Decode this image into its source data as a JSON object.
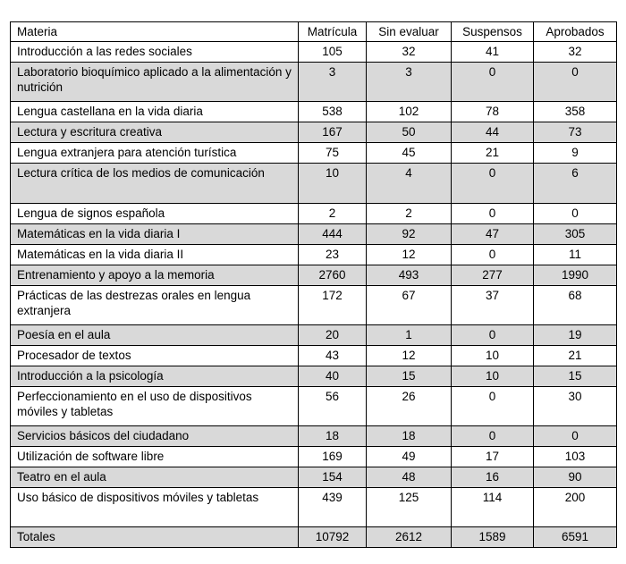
{
  "table": {
    "headers": [
      "Materia",
      "Matrícula",
      "Sin evaluar",
      "Suspensos",
      "Aprobados"
    ],
    "rows": [
      [
        "Introducción a las redes sociales",
        "105",
        "32",
        "41",
        "32"
      ],
      [
        "Laboratorio bioquímico aplicado a la alimentación y nutrición",
        "3",
        "3",
        "0",
        "0"
      ],
      [
        "Lengua castellana en la vida diaria",
        "538",
        "102",
        "78",
        "358"
      ],
      [
        "Lectura y escritura creativa",
        "167",
        "50",
        "44",
        "73"
      ],
      [
        "Lengua extranjera para atención turística",
        "75",
        "45",
        "21",
        "9"
      ],
      [
        "Lectura crítica de los medios de comunicación",
        "10",
        "4",
        "0",
        "6"
      ],
      [
        "Lengua de signos española",
        "2",
        "2",
        "0",
        "0"
      ],
      [
        "Matemáticas en la vida diaria I",
        "444",
        "92",
        "47",
        "305"
      ],
      [
        "Matemáticas en la vida diaria II",
        "23",
        "12",
        "0",
        "11"
      ],
      [
        "Entrenamiento y apoyo a la memoria",
        "2760",
        "493",
        "277",
        "1990"
      ],
      [
        "Prácticas de las destrezas orales en lengua extranjera",
        "172",
        "67",
        "37",
        "68"
      ],
      [
        "Poesía en el aula",
        "20",
        "1",
        "0",
        "19"
      ],
      [
        "Procesador de textos",
        "43",
        "12",
        "10",
        "21"
      ],
      [
        "Introducción a la psicología",
        "40",
        "15",
        "10",
        "15"
      ],
      [
        "Perfeccionamiento en el uso de dispositivos móviles y tabletas",
        "56",
        "26",
        "0",
        "30"
      ],
      [
        "Servicios básicos del ciudadano",
        "18",
        "18",
        "0",
        "0"
      ],
      [
        "Utilización de software libre",
        "169",
        "49",
        "17",
        "103"
      ],
      [
        "Teatro en el aula",
        "154",
        "48",
        "16",
        "90"
      ],
      [
        "Uso básico de dispositivos móviles y tabletas",
        "439",
        "125",
        "114",
        "200"
      ]
    ],
    "totals": [
      "Totales",
      "10792",
      "2612",
      "1589",
      "6591"
    ]
  }
}
